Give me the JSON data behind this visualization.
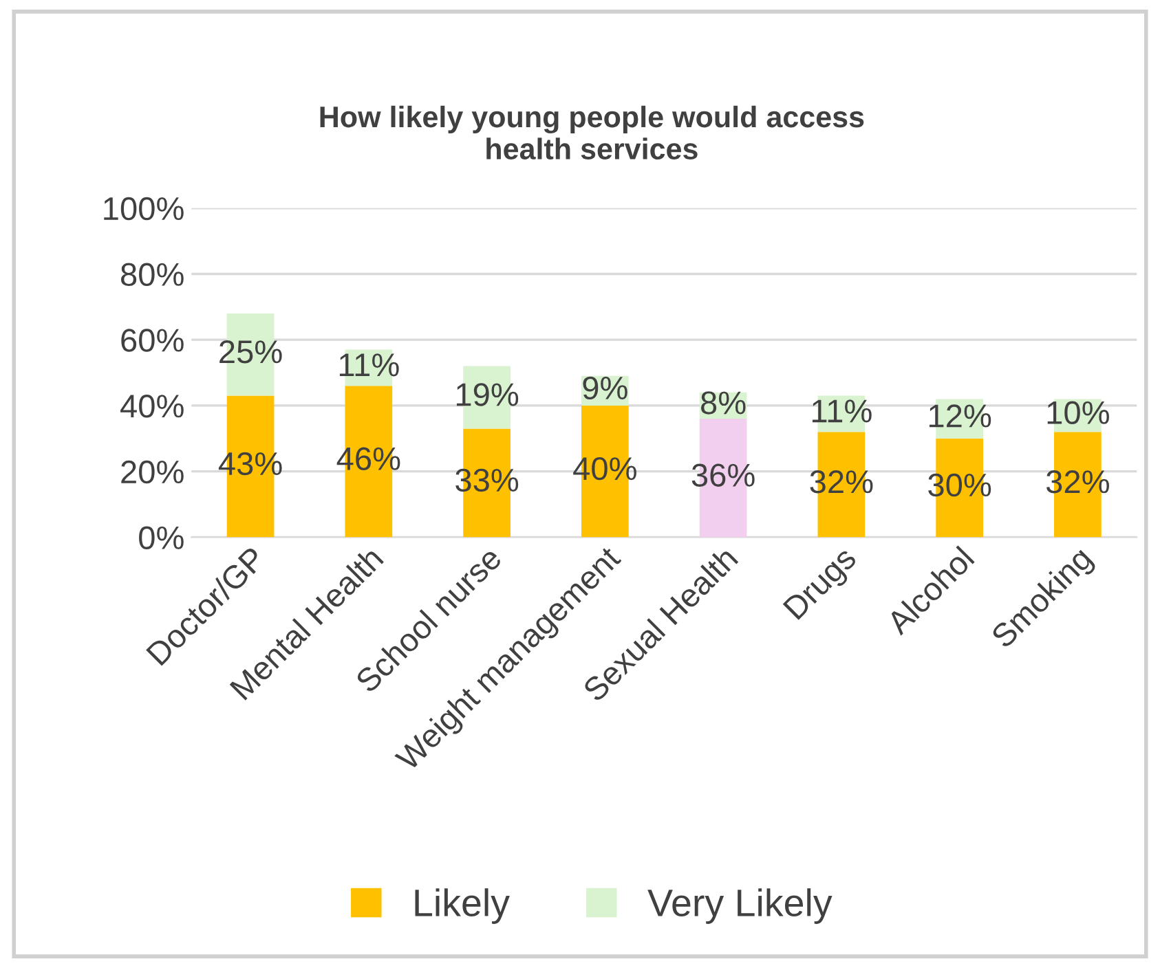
{
  "chart_data": {
    "type": "bar",
    "title": "How likely young people would access\nhealth services",
    "stacked": true,
    "categories": [
      "Doctor/GP",
      "Mental Health",
      "School nurse",
      "Weight management",
      "Sexual Health",
      "Drugs",
      "Alcohol",
      "Smoking"
    ],
    "series": [
      {
        "name": "Likely",
        "color": "#ffc000",
        "colors": [
          "#ffc000",
          "#ffc000",
          "#ffc000",
          "#ffc000",
          "#f2cfee",
          "#ffc000",
          "#ffc000",
          "#ffc000"
        ],
        "values": [
          43,
          46,
          33,
          40,
          36,
          32,
          30,
          32
        ],
        "value_labels": [
          "43%",
          "46%",
          "33%",
          "40%",
          "36%",
          "32%",
          "30%",
          "32%"
        ]
      },
      {
        "name": "Very Likely",
        "color": "#d9f2d0",
        "values": [
          25,
          11,
          19,
          9,
          8,
          11,
          12,
          10
        ],
        "value_labels": [
          "25%",
          "11%",
          "19%",
          "9%",
          "8%",
          "11%",
          "12%",
          "10%"
        ]
      }
    ],
    "ylim": [
      0,
      100
    ],
    "yticks": [
      {
        "value": 0,
        "label": "0%"
      },
      {
        "value": 20,
        "label": "20%"
      },
      {
        "value": 40,
        "label": "40%"
      },
      {
        "value": 60,
        "label": "60%"
      },
      {
        "value": 80,
        "label": "80%"
      },
      {
        "value": 100,
        "label": "100%"
      }
    ],
    "grid": "y",
    "legend": "bottom"
  }
}
